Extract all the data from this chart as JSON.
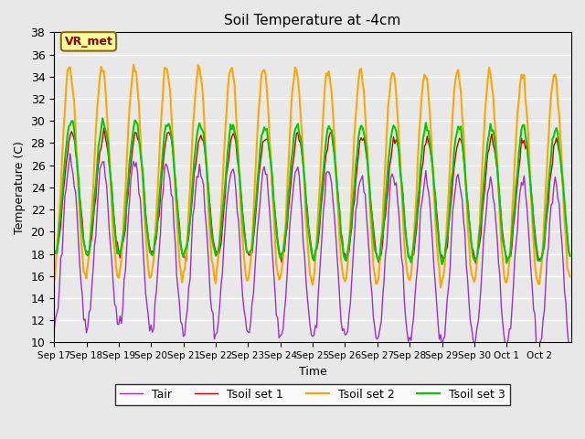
{
  "title": "Soil Temperature at -4cm",
  "xlabel": "Time",
  "ylabel": "Temperature (C)",
  "ylim": [
    10,
    38
  ],
  "yticks": [
    10,
    12,
    14,
    16,
    18,
    20,
    22,
    24,
    26,
    28,
    30,
    32,
    34,
    36,
    38
  ],
  "background_color": "#e8e8e8",
  "plot_bg_color": "#e8e8e8",
  "annotation_text": "VR_met",
  "annotation_color": "#8b0000",
  "annotation_bg": "#ffff99",
  "annotation_edge": "#8b6914",
  "colors": {
    "Tair": "#9932cc",
    "Tsoil_set1": "#cc0000",
    "Tsoil_set2": "#ffa500",
    "Tsoil_set3": "#00cc00"
  },
  "x_tick_labels": [
    "Sep 17",
    "Sep 18",
    "Sep 19",
    "Sep 20",
    "Sep 21",
    "Sep 22",
    "Sep 23",
    "Sep 24",
    "Sep 25",
    "Sep 26",
    "Sep 27",
    "Sep 28",
    "Sep 29",
    "Sep 30",
    "Oct 1",
    "Oct 2"
  ],
  "legend_labels": [
    "Tair",
    "Tsoil set 1",
    "Tsoil set 2",
    "Tsoil set 3"
  ],
  "n_days": 16
}
